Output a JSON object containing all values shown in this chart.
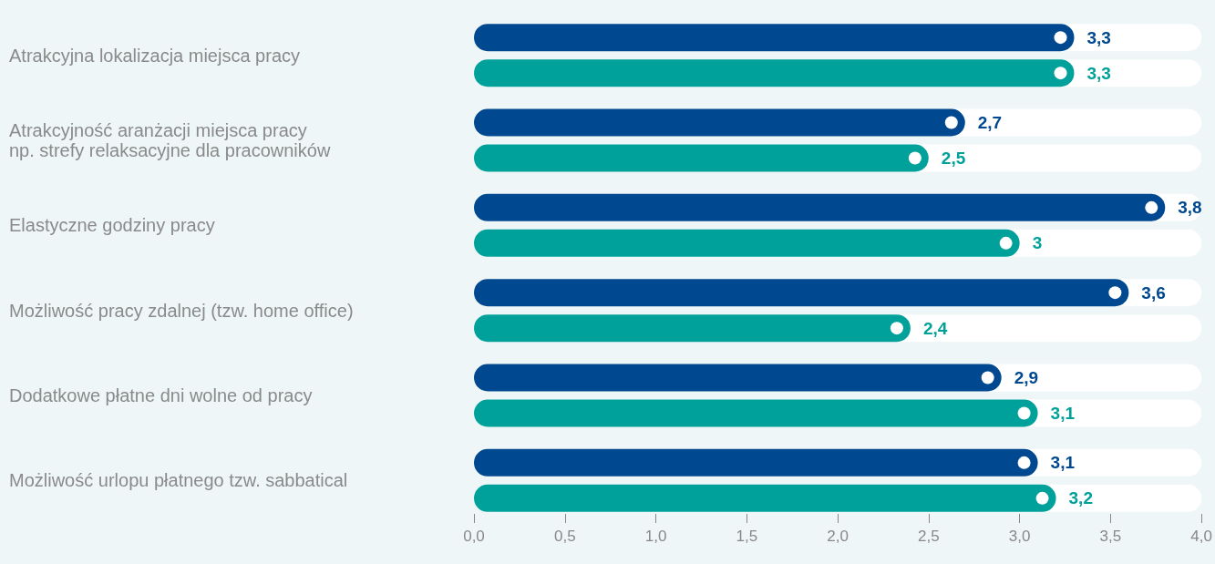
{
  "chart_data": {
    "type": "bar",
    "orientation": "horizontal",
    "categories": [
      "Atrakcyjna lokalizacja miejsca pracy",
      "Atrakcyjność aranżacji miejsca pracy\nnp. strefy relaksacyjne dla pracowników",
      "Elastyczne godziny pracy",
      "Możliwość pracy zdalnej (tzw. home office)",
      "Dodatkowe płatne dni wolne od pracy",
      "Możliwość urlopu płatnego tzw. sabbatical"
    ],
    "series": [
      {
        "color": "#004990",
        "values": [
          3.3,
          2.7,
          3.8,
          3.6,
          2.9,
          3.1
        ],
        "value_labels": [
          "3,3",
          "2,7",
          "3,8",
          "3,6",
          "2,9",
          "3,1"
        ]
      },
      {
        "color": "#00a19a",
        "values": [
          3.3,
          2.5,
          3.0,
          2.4,
          3.1,
          3.2
        ],
        "value_labels": [
          "3,3",
          "2,5",
          "3",
          "2,4",
          "3,1",
          "3,2"
        ]
      }
    ],
    "xlim": [
      0,
      4
    ],
    "xticks": [
      {
        "value": 0,
        "label": "0,0"
      },
      {
        "value": 0.5,
        "label": "0,5"
      },
      {
        "value": 1,
        "label": "1,0"
      },
      {
        "value": 1.5,
        "label": "1,5"
      },
      {
        "value": 2,
        "label": "2,0"
      },
      {
        "value": 2.5,
        "label": "2,5"
      },
      {
        "value": 3,
        "label": "3,0"
      },
      {
        "value": 3.5,
        "label": "3,5"
      },
      {
        "value": 4,
        "label": "4,0"
      }
    ],
    "grid": false,
    "marker": "circle"
  }
}
